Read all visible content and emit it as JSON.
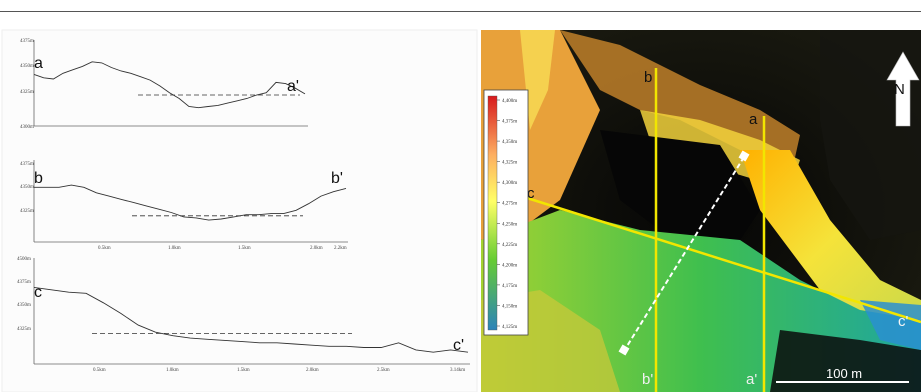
{
  "profiles": [
    {
      "start_label": "a",
      "end_label": "a'",
      "ytick_labels": [
        "4375m",
        "4350m",
        "4325m",
        "4300m"
      ],
      "xtick_labels": [],
      "elev": [
        4345,
        4342,
        4341,
        4346,
        4349,
        4352,
        4356,
        4355,
        4351,
        4348,
        4346,
        4343,
        4340,
        4335,
        4329,
        4324,
        4317,
        4316,
        4317,
        4318,
        4320,
        4322,
        4324,
        4327,
        4329,
        4338,
        4337,
        4333,
        4328
      ],
      "dash_level": 4327
    },
    {
      "start_label": "b",
      "end_label": "b'",
      "ytick_labels": [
        "4375m",
        "4350m",
        "4325m"
      ],
      "xtick_labels": [
        "0.5km",
        "1.0km",
        "1.5km",
        "2.0km",
        "2.2km"
      ],
      "elev": [
        4350,
        4350,
        4350,
        4352,
        4350,
        4345,
        4342,
        4339,
        4336,
        4333,
        4330,
        4327,
        4323,
        4322,
        4320,
        4321,
        4323,
        4325,
        4325,
        4326,
        4326,
        4329,
        4335,
        4342,
        4346,
        4349
      ],
      "dash_level": 4324
    },
    {
      "start_label": "c",
      "end_label": "c'",
      "ytick_labels": [
        "4500m",
        "4375m",
        "4350m",
        "4325m"
      ],
      "xtick_labels": [
        "0.5km",
        "1.0km",
        "1.5km",
        "2.0km",
        "2.5km",
        "3.14km"
      ],
      "elev": [
        4355,
        4353,
        4351,
        4350,
        4342,
        4333,
        4323,
        4317,
        4314,
        4312,
        4311,
        4310,
        4309,
        4308,
        4308,
        4307,
        4306,
        4305,
        4305,
        4304,
        4304,
        4308,
        4302,
        4300,
        4302,
        4300
      ],
      "dash_level": 4316
    }
  ],
  "map": {
    "legend_ticks": [
      "4,400m",
      "4,375m",
      "4,350m",
      "4,325m",
      "4,300m",
      "4,275m",
      "4,250m",
      "4,225m",
      "4,200m",
      "4,175m",
      "4,150m",
      "4,125m"
    ],
    "north_label": "N",
    "scale_label": "100 m",
    "section_labels": {
      "a": "a",
      "a_end": "a'",
      "b": "b",
      "b_end": "b'",
      "c": "c",
      "c_end": "c'"
    },
    "line_color": "#f2e600",
    "legend_colors": [
      "#d7191c",
      "#fdae61",
      "#ffff66",
      "#66cc33",
      "#2b83ba"
    ]
  }
}
